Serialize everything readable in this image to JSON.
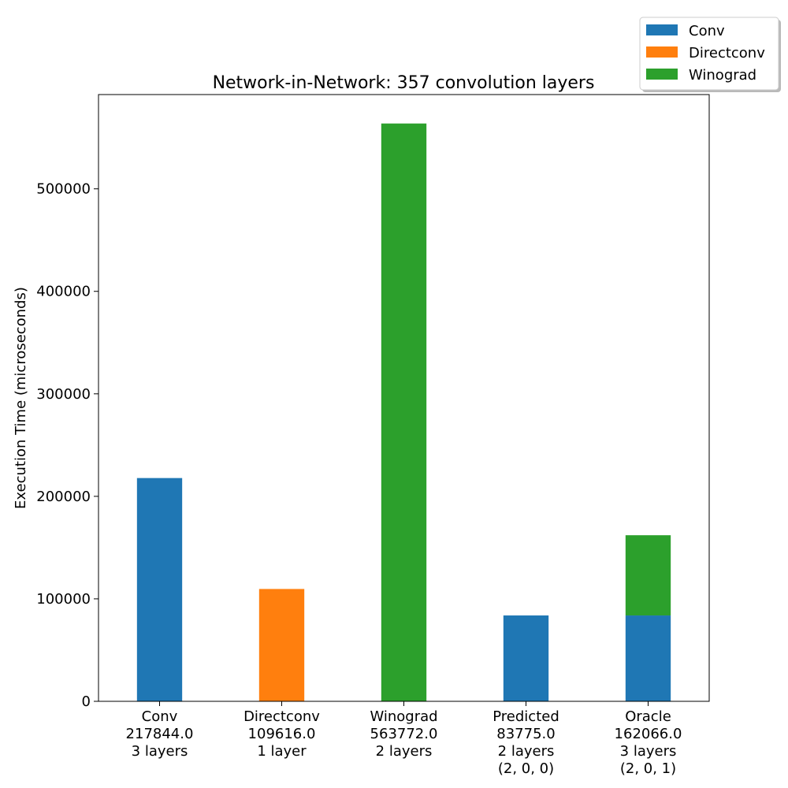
{
  "chart_data": {
    "type": "bar",
    "stacked": true,
    "title": "Network-in-Network: 357 convolution layers",
    "xlabel": "",
    "ylabel": "Execution Time (microseconds)",
    "ylim": [
      0,
      592000
    ],
    "yticks": [
      0,
      100000,
      200000,
      300000,
      400000,
      500000
    ],
    "categories": [
      [
        "Conv",
        "217844.0",
        "3 layers"
      ],
      [
        "Directconv",
        "109616.0",
        "1 layer"
      ],
      [
        "Winograd",
        "563772.0",
        "2 layers"
      ],
      [
        "Predicted",
        "83775.0",
        "2 layers",
        "(2, 0, 0)"
      ],
      [
        "Oracle",
        "162066.0",
        "3 layers",
        "(2, 0, 1)"
      ]
    ],
    "series": [
      {
        "name": "Conv",
        "color": "#1f77b4",
        "values": [
          217844,
          0,
          0,
          83775,
          83775
        ]
      },
      {
        "name": "Directconv",
        "color": "#ff7f0e",
        "values": [
          0,
          109616,
          0,
          0,
          0
        ]
      },
      {
        "name": "Winograd",
        "color": "#2ca02c",
        "values": [
          0,
          0,
          563772,
          0,
          78291
        ]
      }
    ],
    "legend_position": "top-right"
  }
}
